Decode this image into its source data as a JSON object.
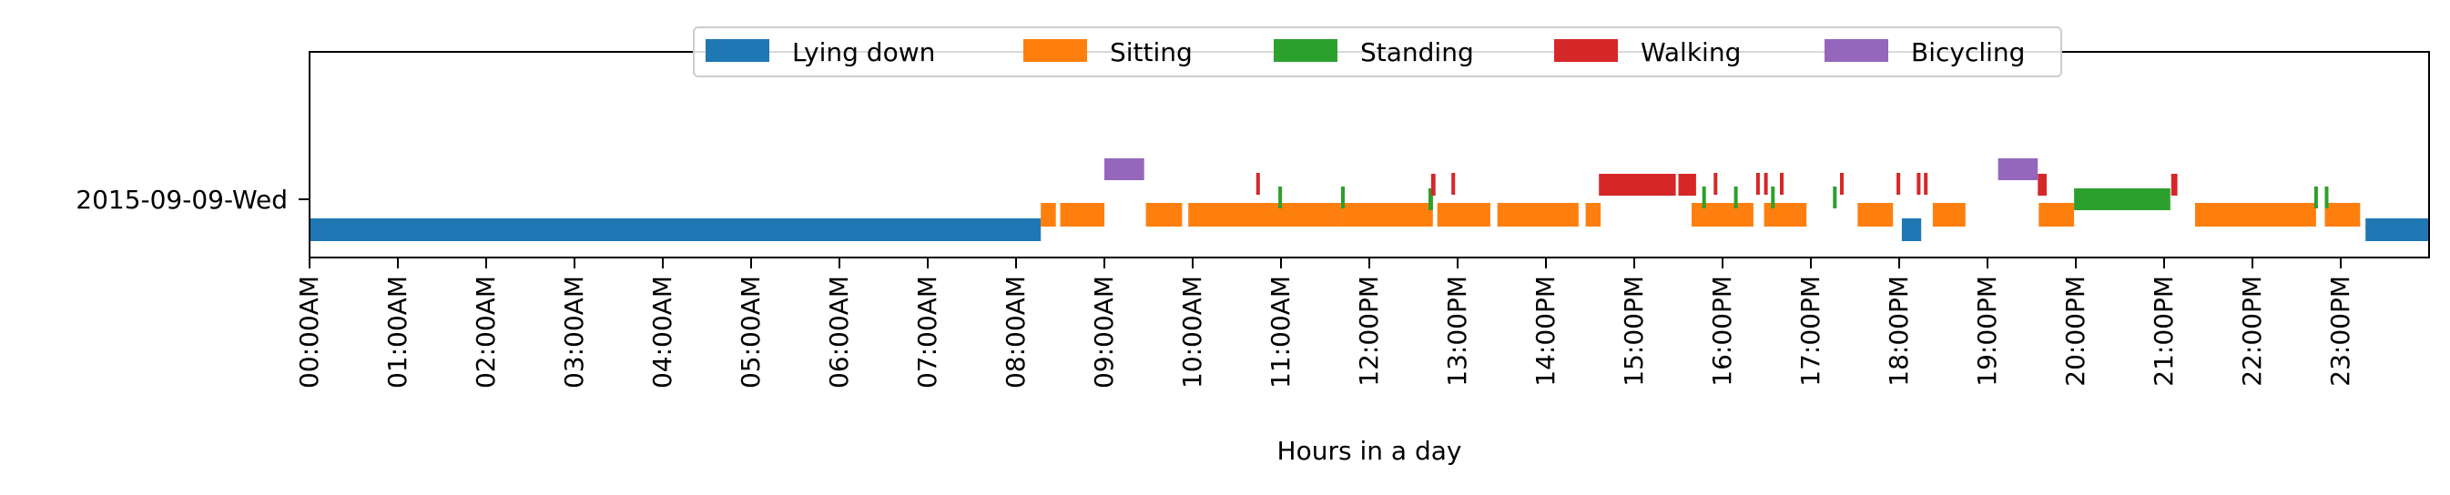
{
  "chart_data": {
    "type": "timeline",
    "title": "",
    "xlabel": "Hours in a day",
    "ylabel": "",
    "xlim": [
      0,
      24
    ],
    "x_tick_values": [
      0,
      1,
      2,
      3,
      4,
      5,
      6,
      7,
      8,
      9,
      10,
      11,
      12,
      13,
      14,
      15,
      16,
      17,
      18,
      19,
      20,
      21,
      22,
      23
    ],
    "x_tick_labels": [
      "00:00AM",
      "01:00AM",
      "02:00AM",
      "03:00AM",
      "04:00AM",
      "05:00AM",
      "06:00AM",
      "07:00AM",
      "08:00AM",
      "09:00AM",
      "10:00AM",
      "11:00AM",
      "12:00PM",
      "13:00PM",
      "14:00PM",
      "15:00PM",
      "16:00PM",
      "17:00PM",
      "18:00PM",
      "19:00PM",
      "20:00PM",
      "21:00PM",
      "22:00PM",
      "23:00PM"
    ],
    "y_tick_labels": [
      "2015-09-09-Wed"
    ],
    "grid": false,
    "legend_position": "top-center",
    "series": [
      {
        "name": "Lying down",
        "color": "#1f77b4",
        "intervals": [
          [
            0.0,
            8.28
          ],
          [
            18.03,
            18.25
          ],
          [
            23.28,
            24.0
          ]
        ]
      },
      {
        "name": "Sitting",
        "color": "#ff7f0e",
        "intervals": [
          [
            8.28,
            8.45
          ],
          [
            8.5,
            9.0
          ],
          [
            9.47,
            9.88
          ],
          [
            9.95,
            11.7
          ],
          [
            11.7,
            12.72
          ],
          [
            12.77,
            13.37
          ],
          [
            13.45,
            14.37
          ],
          [
            14.45,
            14.62
          ],
          [
            15.65,
            16.35
          ],
          [
            16.47,
            16.95
          ],
          [
            17.53,
            17.93
          ],
          [
            18.38,
            18.75
          ],
          [
            19.58,
            19.98
          ],
          [
            21.35,
            22.72
          ],
          [
            22.82,
            23.22
          ]
        ]
      },
      {
        "name": "Standing",
        "color": "#2ca02c",
        "intervals": [
          [
            10.97,
            11.0
          ],
          [
            11.68,
            11.72
          ],
          [
            12.67,
            12.72
          ],
          [
            15.77,
            15.8
          ],
          [
            16.13,
            16.16
          ],
          [
            16.55,
            16.58
          ],
          [
            17.25,
            17.28
          ],
          [
            19.98,
            21.07
          ],
          [
            22.7,
            22.73
          ],
          [
            22.82,
            22.85
          ]
        ]
      },
      {
        "name": "Walking",
        "color": "#d62728",
        "intervals": [
          [
            10.72,
            10.75
          ],
          [
            12.7,
            12.75
          ],
          [
            12.93,
            12.96
          ],
          [
            14.6,
            15.47
          ],
          [
            15.5,
            15.7
          ],
          [
            15.9,
            15.93
          ],
          [
            16.38,
            16.41
          ],
          [
            16.47,
            16.5
          ],
          [
            16.65,
            16.68
          ],
          [
            17.33,
            17.36
          ],
          [
            17.97,
            18.0
          ],
          [
            18.2,
            18.23
          ],
          [
            18.28,
            18.31
          ],
          [
            19.57,
            19.67
          ],
          [
            21.08,
            21.15
          ]
        ]
      },
      {
        "name": "Bicycling",
        "color": "#9467bd",
        "intervals": [
          [
            9.0,
            9.45
          ],
          [
            19.12,
            19.57
          ]
        ]
      }
    ]
  }
}
